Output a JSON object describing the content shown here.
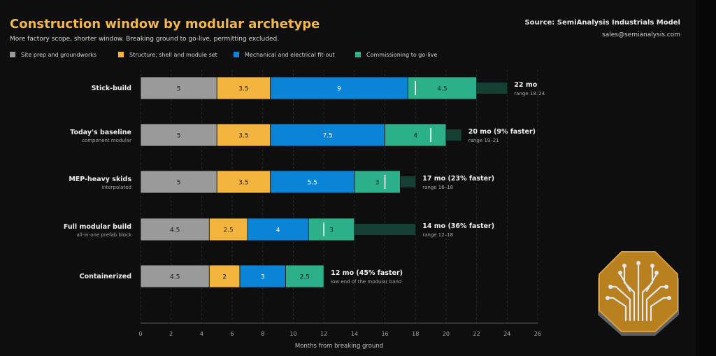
{
  "header": {
    "title": "Construction window by modular archetype",
    "subtitle": "More factory scope, shorter window. Breaking ground to go-live, permitting excluded.",
    "source": "Source: SemiAnalysis Industrials Model",
    "email": "sales@semianalysis.com"
  },
  "colors": {
    "background": "#0e0e0e",
    "title": "#f2b84b",
    "site_prep": "#9a9a9a",
    "structure": "#f4b53f",
    "mep": "#0a84d6",
    "commissioning": "#2bb08a",
    "range_band": "#163f33"
  },
  "badge_icon": "circuit-tree-icon",
  "chart_data": {
    "type": "bar",
    "stacked": true,
    "orientation": "horizontal",
    "xlabel": "Months from breaking ground",
    "xlim": [
      0,
      26
    ],
    "xticks": [
      0,
      2,
      4,
      6,
      8,
      10,
      12,
      14,
      16,
      18,
      20,
      22,
      24,
      26
    ],
    "grid": true,
    "legend_position": "top-left",
    "series": [
      {
        "name": "Site prep and groundworks",
        "color": "#9a9a9a"
      },
      {
        "name": "Structure, shell and module set",
        "color": "#f4b53f"
      },
      {
        "name": "Mechanical and electrical fit-out",
        "color": "#0a84d6"
      },
      {
        "name": "Commissioning to go-live",
        "color": "#2bb08a"
      }
    ],
    "categories": [
      {
        "label": "Stick-build",
        "sublabel": "",
        "values": [
          5,
          3.5,
          9,
          4.5
        ],
        "range": [
          18,
          24
        ],
        "marker": 18,
        "total_label": "22 mo",
        "range_label": "range 18–24"
      },
      {
        "label": "Today's baseline",
        "sublabel": "component modular",
        "values": [
          5,
          3.5,
          7.5,
          4
        ],
        "range": [
          19,
          21
        ],
        "marker": 19,
        "total_label": "20 mo (9% faster)",
        "range_label": "range 19–21"
      },
      {
        "label": "MEP-heavy skids",
        "sublabel": "interpolated",
        "values": [
          5,
          3.5,
          5.5,
          3
        ],
        "range": [
          16,
          18
        ],
        "marker": 16,
        "total_label": "17 mo (23% faster)",
        "range_label": "range 16–18"
      },
      {
        "label": "Full modular build",
        "sublabel": "all-in-one prefab block",
        "values": [
          4.5,
          2.5,
          4,
          3
        ],
        "range": [
          12,
          18
        ],
        "marker": 12,
        "total_label": "14 mo (36% faster)",
        "range_label": "range 12–18"
      },
      {
        "label": "Containerized",
        "sublabel": "",
        "values": [
          4.5,
          2,
          3,
          2.5
        ],
        "range": null,
        "marker": null,
        "total_label": "12 mo (45% faster)",
        "range_label": "low end of the modular band"
      }
    ]
  }
}
